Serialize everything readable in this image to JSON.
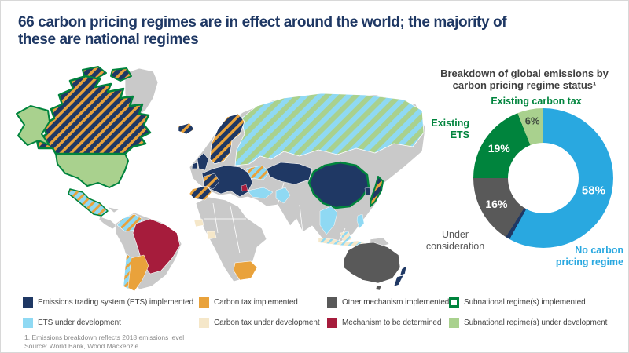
{
  "title": "66 carbon pricing regimes are in effect around the world; the majority of\nthese are national regimes",
  "palette": {
    "navy": "#1F3864",
    "orange": "#E9A23B",
    "land": "#C9C9C9",
    "dark_gray": "#595959",
    "green": "#00843D",
    "light_green": "#A9D18E",
    "light_blue": "#8FD9F3",
    "cream": "#F5E7C9",
    "dark_red": "#A61C3C",
    "donut_blue": "#29A8E0",
    "text_dark": "#404040"
  },
  "chart_data": {
    "type": "pie",
    "subtype": "donut",
    "title": "Breakdown of global emissions by carbon pricing regime status¹",
    "start_angle_deg": 0,
    "direction": "clockwise",
    "hole_ratio": 0.5,
    "segments": [
      {
        "label": "No carbon pricing regime",
        "value": 58,
        "color": "#29A8E0",
        "pct_text": "58%"
      },
      {
        "label": "",
        "value": 1,
        "color": "#1F3864",
        "pct_text": ""
      },
      {
        "label": "Under consideration",
        "value": 16,
        "color": "#595959",
        "pct_text": "16%"
      },
      {
        "label": "Existing ETS",
        "value": 19,
        "color": "#00843D",
        "pct_text": "19%"
      },
      {
        "label": "Existing carbon tax",
        "value": 6,
        "color": "#A9D18E",
        "pct_text": "6%",
        "label_dark": true
      }
    ]
  },
  "donut": {
    "title": "Breakdown of global emissions by\ncarbon pricing regime status¹",
    "callouts": [
      {
        "text": "Existing carbon tax",
        "color_key": "green"
      },
      {
        "text": "Existing\nETS",
        "color_key": "green"
      },
      {
        "text": "Under\nconsideration",
        "color_key": "dark_gray"
      },
      {
        "text": "No carbon\npricing regime",
        "color_key": "donut_blue"
      }
    ]
  },
  "legend": {
    "items": [
      {
        "label": "Emissions trading system (ETS) implemented",
        "swatch": "navy"
      },
      {
        "label": "Carbon tax implemented",
        "swatch": "orange"
      },
      {
        "label": "Other mechanism implemented",
        "swatch": "dark_gray"
      },
      {
        "label": "Subnational regime(s) implemented",
        "swatch": "hollow"
      },
      {
        "label": "ETS under development",
        "swatch": "light_blue"
      },
      {
        "label": "Carbon tax under development",
        "swatch": "cream"
      },
      {
        "label": "Mechanism to be determined",
        "swatch": "dark_red"
      },
      {
        "label": "Subnational regime(s) under development",
        "swatch": "light_green"
      }
    ]
  },
  "map": {
    "fills": {
      "greenland": "land",
      "canada": "patNavyOrange",
      "canada-islands-1": "patNavyOrange",
      "canada-islands-2": "patNavyOrange",
      "alaska": "light_green",
      "usa": "light_green",
      "mexico": "patLbOrange",
      "central-america": "land",
      "cuba": "land",
      "south-america": "land",
      "colombia": "patLbOrange",
      "brazil": "dark_red",
      "chile": "patLbOrange",
      "argentina": "orange",
      "africa": "land",
      "south-africa": "orange",
      "senegal": "cream",
      "ivory-coast": "cream",
      "eurasia": "land",
      "iceland": "patNavyOrange",
      "scandinavia": "patNavyOrange",
      "uk": "navy",
      "ireland": "navy",
      "europe": "navy",
      "iberia": "patNavyOrange",
      "france": "patNavyOrange",
      "balkan": "dark_red",
      "ukraine": "patLbOrange",
      "turkey": "light_blue",
      "russia": "patRussia",
      "kazakhstan": "navy",
      "pakistan": "light_blue",
      "china": "navy",
      "south-korea": "navy",
      "japan": "patNavyOrange",
      "thailand-vietnam": "light_blue",
      "philippines": "light_blue",
      "indonesia": "patCreamLb",
      "borneo": "patCreamLb",
      "new-guinea": "land",
      "australia": "dark_gray",
      "tasmania": "dark_gray",
      "new-zealand-north": "navy",
      "new-zealand-south": "navy"
    }
  },
  "footnotes": [
    "1. Emissions breakdown reflects 2018 emissions level",
    "Source: World Bank, Wood Mackenzie"
  ]
}
